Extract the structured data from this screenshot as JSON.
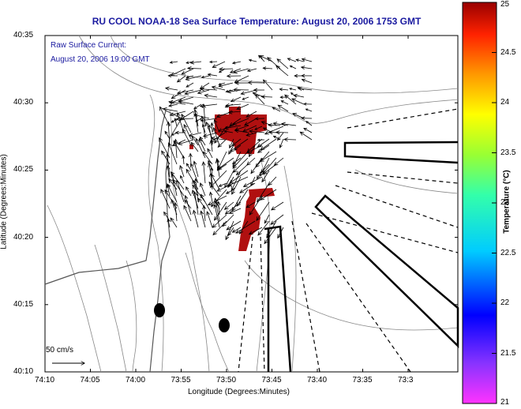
{
  "title": "RU COOL  NOAA-18  Sea Surface Temperature:  August 20, 2006 1753 GMT",
  "inset": {
    "line1": "Raw Surface Current:",
    "line2": "August 20, 2006 19:00 GMT"
  },
  "scale_arrow_label": "50 cm/s",
  "x_axis": {
    "label": "Longitude (Degrees:Minutes)",
    "ticks": [
      "74:10",
      "74:05",
      "74:00",
      "73:55",
      "73:50",
      "73:45",
      "73:40",
      "73:35",
      "73:3"
    ]
  },
  "y_axis": {
    "label": "Latitude (Degrees:Minutes)",
    "ticks": [
      "40:35",
      "40:30",
      "40:25",
      "40:20",
      "40:15",
      "40:10"
    ]
  },
  "colorbar": {
    "label": "Temperature (°C)",
    "ticks": [
      "25",
      "24.5",
      "24",
      "23.5",
      "23",
      "22.5",
      "22",
      "21.5",
      "21"
    ],
    "range": [
      21,
      25
    ]
  },
  "colors": {
    "title": "#1a1aa0",
    "warm_patch": "#b01010",
    "land": "#ffffff",
    "contour": "#888888"
  }
}
